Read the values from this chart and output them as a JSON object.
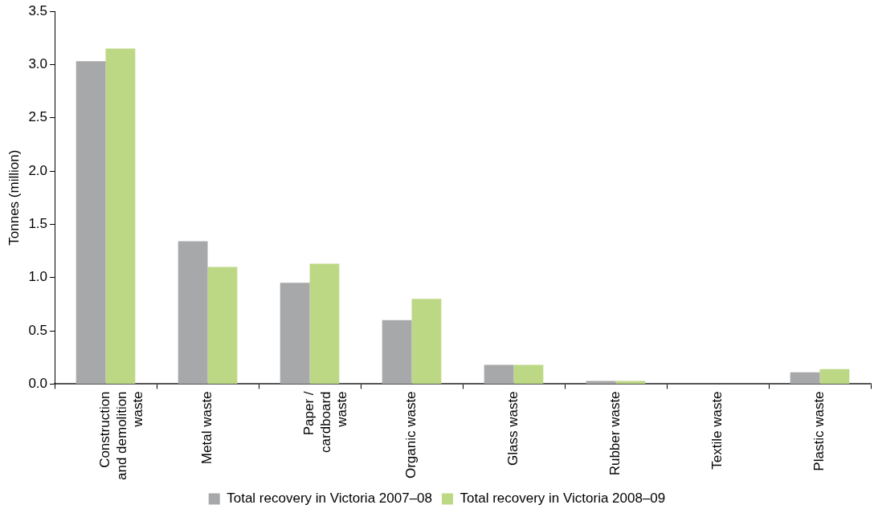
{
  "chart_data": {
    "type": "bar",
    "ylabel": "Tonnes (million)",
    "categories": [
      "Construction and demolition waste",
      "Metal waste",
      "Paper / cardboard waste",
      "Organic waste",
      "Glass waste",
      "Rubber waste",
      "Textile waste",
      "Plastic waste"
    ],
    "series": [
      {
        "name": "Total recovery in Victoria 2007–08",
        "color": "#a7a8aa",
        "values": [
          3.03,
          1.34,
          0.95,
          0.6,
          0.18,
          0.03,
          0,
          0.11
        ]
      },
      {
        "name": "Total recovery in Victoria 2008–09",
        "color": "#bdd885",
        "values": [
          3.15,
          1.1,
          1.13,
          0.8,
          0.18,
          0.03,
          0,
          0.14
        ]
      }
    ],
    "ylim": [
      0,
      3.5
    ],
    "yticks": [
      {
        "value": 0,
        "label": "0.0"
      },
      {
        "value": 0.5,
        "label": "0.5"
      },
      {
        "value": 1,
        "label": "1.0"
      },
      {
        "value": 1.5,
        "label": "1.5"
      },
      {
        "value": 2,
        "label": "2.0"
      },
      {
        "value": 2.5,
        "label": "2.5"
      },
      {
        "value": 3,
        "label": "3.0"
      },
      {
        "value": 3.5,
        "label": "3.5"
      }
    ],
    "grid": false,
    "legend": "bottom"
  }
}
